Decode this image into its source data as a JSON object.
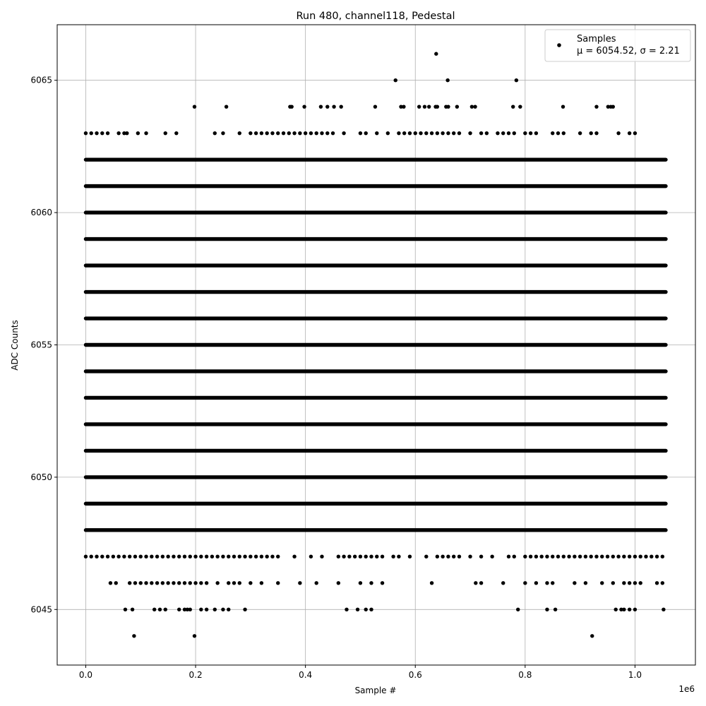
{
  "chart_data": {
    "type": "scatter",
    "title": "Run 480, channel118, Pedestal",
    "xlabel": "Sample #",
    "ylabel": "ADC Counts",
    "x_offset_label": "1e6",
    "x_scale": 1000000,
    "xlim": [
      -0.052,
      1.11
    ],
    "ylim": [
      6042.9,
      6067.1
    ],
    "x_ticks": [
      0.0,
      0.2,
      0.4,
      0.6,
      0.8,
      1.0
    ],
    "x_tick_labels": [
      "0.0",
      "0.2",
      "0.4",
      "0.6",
      "0.8",
      "1.0"
    ],
    "y_ticks": [
      6045,
      6050,
      6055,
      6060,
      6065
    ],
    "y_tick_labels": [
      "6045",
      "6050",
      "6055",
      "6060",
      "6065"
    ],
    "grid": true,
    "legend": {
      "placement": "top-right",
      "label": "Samples",
      "stats": "μ = 6054.52, σ = 2.21"
    },
    "series": [
      {
        "name": "Samples",
        "color": "#000000",
        "x_range": [
          0,
          1056000
        ],
        "dense_levels": [
          6048,
          6049,
          6050,
          6051,
          6052,
          6053,
          6054,
          6055,
          6056,
          6057,
          6058,
          6059,
          6060,
          6061,
          6062
        ],
        "sparse_levels": [
          {
            "y": 6047,
            "x": [
              0.0,
              0.01,
              0.02,
              0.03,
              0.04,
              0.05,
              0.06,
              0.07,
              0.08,
              0.09,
              0.1,
              0.11,
              0.12,
              0.13,
              0.14,
              0.15,
              0.16,
              0.17,
              0.18,
              0.19,
              0.2,
              0.21,
              0.22,
              0.23,
              0.24,
              0.25,
              0.26,
              0.27,
              0.28,
              0.29,
              0.3,
              0.31,
              0.32,
              0.33,
              0.34,
              0.35,
              0.38,
              0.41,
              0.43,
              0.46,
              0.47,
              0.48,
              0.49,
              0.5,
              0.51,
              0.52,
              0.53,
              0.54,
              0.56,
              0.57,
              0.59,
              0.62,
              0.64,
              0.65,
              0.66,
              0.67,
              0.68,
              0.7,
              0.72,
              0.74,
              0.77,
              0.78,
              0.8,
              0.81,
              0.82,
              0.83,
              0.84,
              0.85,
              0.86,
              0.87,
              0.88,
              0.89,
              0.9,
              0.91,
              0.92,
              0.93,
              0.94,
              0.95,
              0.96,
              0.97,
              0.98,
              0.99,
              1.0,
              1.01,
              1.02,
              1.03,
              1.04,
              1.05
            ]
          },
          {
            "y": 6046,
            "x": [
              0.045,
              0.055,
              0.08,
              0.09,
              0.1,
              0.11,
              0.12,
              0.13,
              0.14,
              0.15,
              0.16,
              0.17,
              0.18,
              0.19,
              0.2,
              0.21,
              0.22,
              0.24,
              0.26,
              0.27,
              0.28,
              0.3,
              0.32,
              0.35,
              0.39,
              0.42,
              0.46,
              0.5,
              0.52,
              0.54,
              0.63,
              0.71,
              0.72,
              0.76,
              0.8,
              0.82,
              0.84,
              0.85,
              0.89,
              0.91,
              0.94,
              0.96,
              0.98,
              0.99,
              1.0,
              1.01,
              1.04,
              1.05
            ]
          },
          {
            "y": 6045,
            "x": [
              0.072,
              0.085,
              0.125,
              0.135,
              0.145,
              0.17,
              0.18,
              0.185,
              0.19,
              0.21,
              0.22,
              0.235,
              0.25,
              0.26,
              0.29,
              0.475,
              0.495,
              0.51,
              0.52,
              0.787,
              0.84,
              0.855,
              0.965,
              0.975,
              0.98,
              0.99,
              1.0,
              1.052
            ]
          },
          {
            "y": 6044,
            "x": [
              0.088,
              0.198,
              0.922
            ]
          },
          {
            "y": 6063,
            "x": [
              0.0,
              0.01,
              0.02,
              0.03,
              0.04,
              0.06,
              0.07,
              0.075,
              0.095,
              0.11,
              0.145,
              0.165,
              0.235,
              0.25,
              0.28,
              0.3,
              0.31,
              0.32,
              0.33,
              0.34,
              0.35,
              0.36,
              0.37,
              0.38,
              0.39,
              0.4,
              0.41,
              0.42,
              0.43,
              0.44,
              0.45,
              0.47,
              0.5,
              0.51,
              0.53,
              0.55,
              0.57,
              0.58,
              0.59,
              0.6,
              0.61,
              0.62,
              0.63,
              0.64,
              0.65,
              0.66,
              0.67,
              0.68,
              0.7,
              0.72,
              0.73,
              0.75,
              0.76,
              0.77,
              0.78,
              0.8,
              0.81,
              0.82,
              0.85,
              0.86,
              0.87,
              0.9,
              0.92,
              0.93,
              0.97,
              0.99,
              1.0
            ]
          },
          {
            "y": 6064,
            "x": [
              0.198,
              0.256,
              0.372,
              0.375,
              0.398,
              0.428,
              0.44,
              0.452,
              0.465,
              0.527,
              0.574,
              0.579,
              0.607,
              0.617,
              0.625,
              0.637,
              0.64,
              0.656,
              0.66,
              0.676,
              0.703,
              0.709,
              0.778,
              0.791,
              0.869,
              0.93,
              0.951,
              0.956,
              0.96
            ]
          },
          {
            "y": 6065,
            "x": [
              0.564,
              0.659,
              0.784
            ]
          },
          {
            "y": 6066,
            "x": [
              0.638
            ]
          }
        ]
      }
    ]
  }
}
